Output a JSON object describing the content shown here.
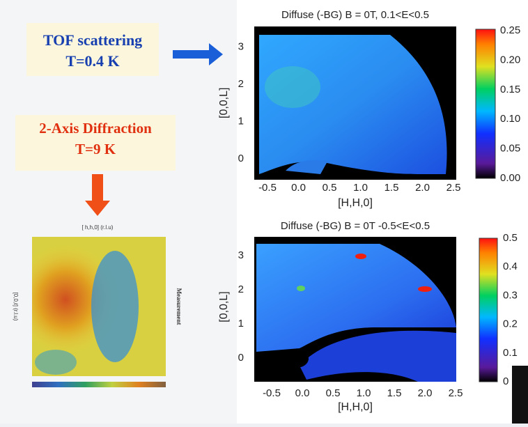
{
  "left": {
    "tof_box": {
      "title": "TOF scattering",
      "temperature": "T=0.4 K"
    },
    "diffraction_box": {
      "title": "2-Axis Diffraction",
      "temperature": "T=9 K"
    },
    "small_plot": {
      "xlabel": "[ h,h,0] (r.l.u)",
      "ylabel": "[0,0,ℓ] (r.l.u)",
      "side_label": "Measurement"
    }
  },
  "panels": [
    {
      "title": "Diffuse (-BG) B = 0T, 0.1<E<0.5",
      "xlabel": "[H,H,0]",
      "ylabel": "[0,0,L]",
      "xticks": [
        "-0.5",
        "0.0",
        "0.5",
        "1.0",
        "1.5",
        "2.0",
        "2.5"
      ],
      "yticks": [
        "0",
        "1",
        "2",
        "3"
      ],
      "colorbar_ticks": [
        "0.00",
        "0.05",
        "0.10",
        "0.15",
        "0.20",
        "0.25"
      ]
    },
    {
      "title": "Diffuse (-BG) B = 0T -0.5<E<0.5",
      "xlabel": "[H,H,0]",
      "ylabel": "[0,0,L]",
      "xticks": [
        "-0.5",
        "0.0",
        "0.5",
        "1.0",
        "1.5",
        "2.0",
        "2.5"
      ],
      "yticks": [
        "0",
        "1",
        "2",
        "3"
      ],
      "colorbar_ticks": [
        "0",
        "0.1",
        "0.2",
        "0.3",
        "0.4",
        "0.5"
      ]
    }
  ]
}
